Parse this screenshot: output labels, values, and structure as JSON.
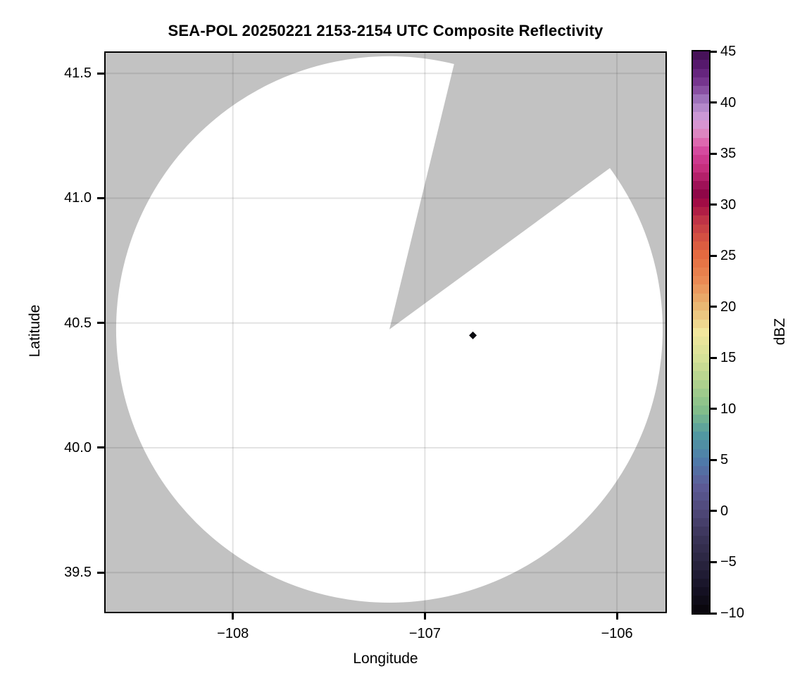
{
  "title": "SEA-POL 20250221 2153-2154 UTC Composite Reflectivity",
  "axes": {
    "x": {
      "label": "Longitude",
      "range": [
        -108.67,
        -105.74
      ],
      "ticks": [
        {
          "label": "−108",
          "value": -108
        },
        {
          "label": "−107",
          "value": -107
        },
        {
          "label": "−106",
          "value": -106
        }
      ]
    },
    "y": {
      "label": "Latitude",
      "range": [
        41.588,
        39.337
      ],
      "ticks": [
        {
          "label": "41.5",
          "value": 41.5
        },
        {
          "label": "41.0",
          "value": 41.0
        },
        {
          "label": "40.5",
          "value": 40.5
        },
        {
          "label": "40.0",
          "value": 40.0
        },
        {
          "label": "39.5",
          "value": 39.5
        }
      ]
    }
  },
  "colorbar": {
    "label": "dBZ",
    "range": [
      -10,
      45
    ],
    "n_bands": 65,
    "ticks": [
      {
        "label": "45",
        "value": 45
      },
      {
        "label": "40",
        "value": 40
      },
      {
        "label": "35",
        "value": 35
      },
      {
        "label": "30",
        "value": 30
      },
      {
        "label": "25",
        "value": 25
      },
      {
        "label": "20",
        "value": 20
      },
      {
        "label": "15",
        "value": 15
      },
      {
        "label": "10",
        "value": 10
      },
      {
        "label": "5",
        "value": 5
      },
      {
        "label": "0",
        "value": 0
      },
      {
        "label": "−5",
        "value": -5
      },
      {
        "label": "−10",
        "value": -10
      }
    ],
    "stops": [
      {
        "v": 45.0,
        "c": "#400e50"
      },
      {
        "v": 43.3,
        "c": "#5e1d76"
      },
      {
        "v": 41.7,
        "c": "#7c3b94"
      },
      {
        "v": 40.0,
        "c": "#a77fc4"
      },
      {
        "v": 38.3,
        "c": "#d49dda"
      },
      {
        "v": 37.0,
        "c": "#dd87c2"
      },
      {
        "v": 36.0,
        "c": "#dd64ad"
      },
      {
        "v": 35.0,
        "c": "#d2419a"
      },
      {
        "v": 33.3,
        "c": "#c22a77"
      },
      {
        "v": 31.8,
        "c": "#9c0f55"
      },
      {
        "v": 31.0,
        "c": "#8e0747"
      },
      {
        "v": 30.0,
        "c": "#a50d45"
      },
      {
        "v": 28.5,
        "c": "#bf3346"
      },
      {
        "v": 27.0,
        "c": "#d14d42"
      },
      {
        "v": 25.0,
        "c": "#e56c40"
      },
      {
        "v": 22.5,
        "c": "#ea8b55"
      },
      {
        "v": 20.0,
        "c": "#e9b873"
      },
      {
        "v": 17.5,
        "c": "#f2e79d"
      },
      {
        "v": 15.0,
        "c": "#d6e197"
      },
      {
        "v": 12.5,
        "c": "#aed18d"
      },
      {
        "v": 10.0,
        "c": "#84bf8a"
      },
      {
        "v": 7.5,
        "c": "#519aa0"
      },
      {
        "v": 5.0,
        "c": "#4e7cab"
      },
      {
        "v": 2.5,
        "c": "#5c5b97"
      },
      {
        "v": 0.0,
        "c": "#4f4878"
      },
      {
        "v": -2.5,
        "c": "#3a3458"
      },
      {
        "v": -5.0,
        "c": "#2a2540"
      },
      {
        "v": -7.5,
        "c": "#161226"
      },
      {
        "v": -10.0,
        "c": "#070509"
      }
    ]
  },
  "colors": {
    "background": "#ffffff",
    "no_data_gray": "#c2c2c2",
    "coverage_white": "#ffffff",
    "grid": "rgba(80,80,80,0.16)",
    "frame": "#000000",
    "point": "#0b0a10",
    "text": "#000000"
  },
  "chart_data": {
    "type": "heatmap",
    "description": "Radar PPI composite reflectivity on a lon/lat map; white disk = scanned coverage with no echoes, gray = no data, one small echo pixel cluster.",
    "title": "SEA-POL 20250221 2153-2154 UTC Composite Reflectivity",
    "xlabel": "Longitude",
    "ylabel": "Latitude",
    "xlim": [
      -108.67,
      -105.74
    ],
    "ylim": [
      39.337,
      41.588
    ],
    "grid": true,
    "colorbar_label": "dBZ",
    "colorbar_range": [
      -10,
      45
    ],
    "radar": {
      "center_lon": -107.185,
      "center_lat": 40.474,
      "radius_deg_lon": 1.423,
      "missing_sector_azimuth_deg": [
        13.7,
        53.8
      ]
    },
    "points": [
      {
        "lon": -106.75,
        "lat": 40.45,
        "dbz": -9
      }
    ]
  }
}
